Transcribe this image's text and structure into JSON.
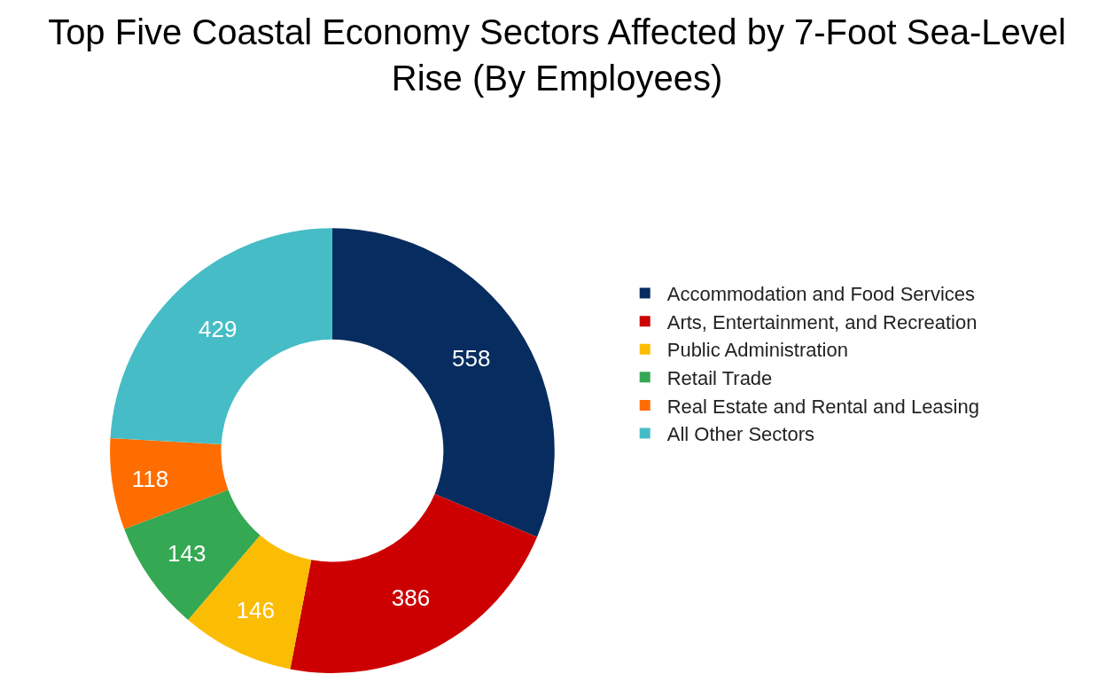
{
  "chart_data": {
    "type": "donut",
    "title": "Top Five Coastal Economy Sectors Affected by 7-Foot Sea-Level Rise (By Employees)",
    "categories": [
      "Accommodation and Food Services",
      "Arts, Entertainment, and Recreation",
      "Public Administration",
      "Retail Trade",
      "Real Estate and Rental and Leasing",
      "All Other Sectors"
    ],
    "values": [
      558,
      386,
      146,
      143,
      118,
      429
    ],
    "colors": [
      "#072c5f",
      "#cc0000",
      "#fbbc04",
      "#34a853",
      "#ff6d01",
      "#46bdc6"
    ],
    "data_labels": true,
    "legend": "right"
  }
}
